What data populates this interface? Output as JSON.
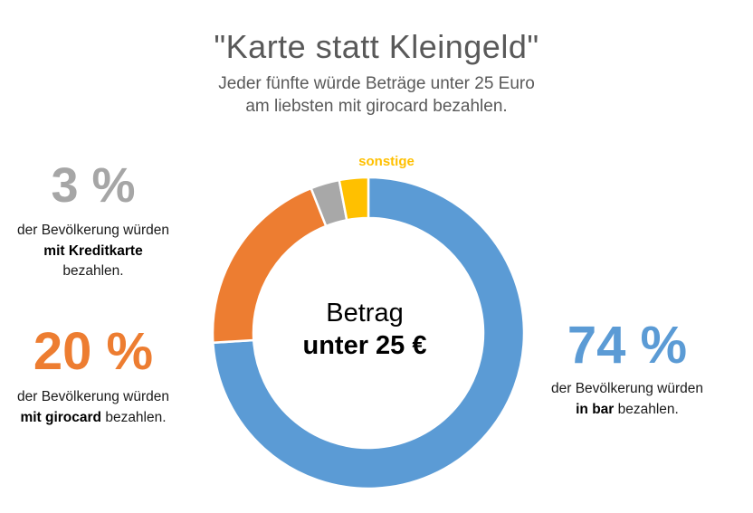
{
  "header": {
    "title": "\"Karte statt Kleingeld\"",
    "subtitle_line1": "Jeder fünfte würde Beträge unter 25 Euro",
    "subtitle_line2": "am liebsten mit girocard bezahlen."
  },
  "chart_data": {
    "type": "pie",
    "subtype": "donut",
    "title": "Karte statt Kleingeld",
    "unit": "% der Bevölkerung",
    "start_angle_deg": 0,
    "clockwise": true,
    "outer_radius_px": 172,
    "inner_radius_px": 127,
    "segments": [
      {
        "key": "in-bar",
        "label": "in bar",
        "value": 74,
        "color": "#5B9BD5"
      },
      {
        "key": "girocard",
        "label": "mit girocard",
        "value": 20,
        "color": "#ED7D31"
      },
      {
        "key": "kreditkarte",
        "label": "mit Kreditkarte",
        "value": 3,
        "color": "#A8A8A8"
      },
      {
        "key": "sonstige",
        "label": "sonstige",
        "value": 3,
        "color": "#FFC000"
      }
    ],
    "segment_callout": "sonstige",
    "center_label": {
      "line1": "Betrag",
      "line2": "unter 25 €"
    }
  },
  "annotations": {
    "kreditkarte": {
      "percent": "3 %",
      "color": "#A6A6A6",
      "line1": "der Bevölkerung würden",
      "bold": "mit Kreditkarte",
      "line3": "bezahlen."
    },
    "girocard": {
      "percent": "20 %",
      "color": "#ED7D31",
      "line1": "der Bevölkerung würden",
      "bold": "mit girocard",
      "rest": " bezahlen."
    },
    "bar": {
      "percent": "74 %",
      "color": "#5B9BD5",
      "line1": "der Bevölkerung würden",
      "bold": "in bar",
      "rest": " bezahlen."
    }
  }
}
